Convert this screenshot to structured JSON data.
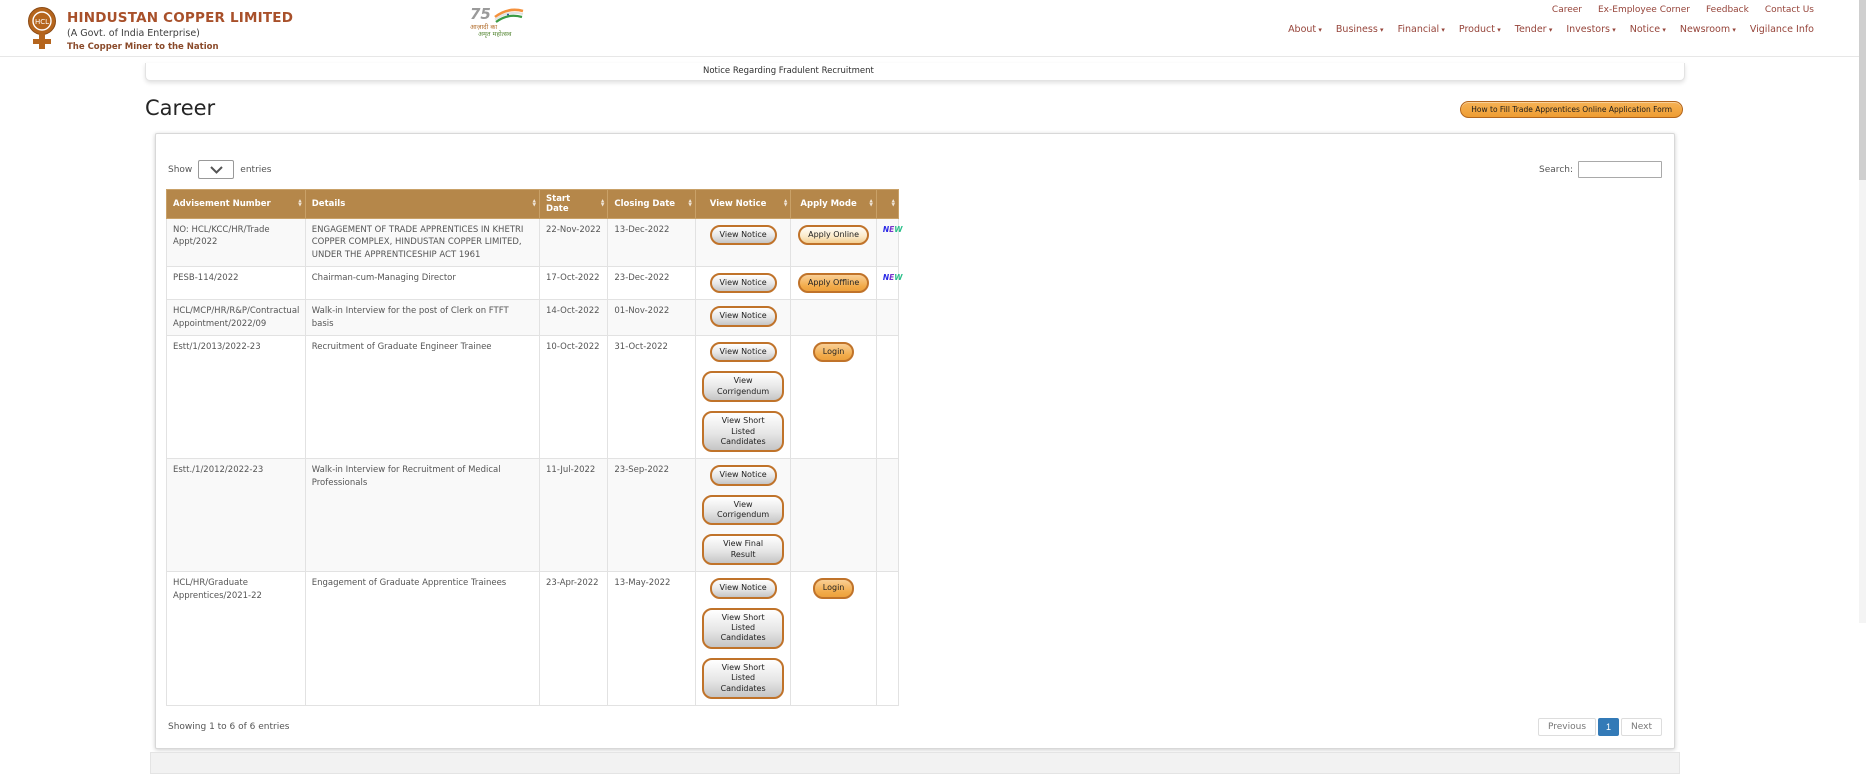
{
  "header": {
    "brand": {
      "name": "HINDUSTAN COPPER LIMITED",
      "subtitle": "(A Govt. of India Enterprise)",
      "tagline": "The Copper Miner to the Nation"
    },
    "center_logo": {
      "number": "75",
      "line1": "आज़ादी का",
      "line2": "अमृत महोत्सव"
    },
    "top_links": [
      "Career",
      "Ex-Employee Corner",
      "Feedback",
      "Contact Us"
    ],
    "nav_items": [
      {
        "label": "About",
        "dropdown": true
      },
      {
        "label": "Business",
        "dropdown": true
      },
      {
        "label": "Financial",
        "dropdown": true
      },
      {
        "label": "Product",
        "dropdown": true
      },
      {
        "label": "Tender",
        "dropdown": true
      },
      {
        "label": "Investors",
        "dropdown": true
      },
      {
        "label": "Notice",
        "dropdown": true
      },
      {
        "label": "Newsroom",
        "dropdown": true
      },
      {
        "label": "Vigilance Info",
        "dropdown": false
      }
    ]
  },
  "notice_bar": {
    "text": "Notice Regarding Fradulent Recruitment"
  },
  "page": {
    "title": "Career",
    "help_button": "How to Fill Trade Apprentices Online Application Form"
  },
  "table_controls": {
    "show_label": "Show",
    "entries_label": "entries",
    "search_label": "Search:",
    "search_value": ""
  },
  "table": {
    "columns": [
      {
        "label": "Advisement Number",
        "center": false
      },
      {
        "label": "Details",
        "center": false
      },
      {
        "label": "Start Date",
        "center": false
      },
      {
        "label": "Closing Date",
        "center": false
      },
      {
        "label": "View Notice",
        "center": true
      },
      {
        "label": "Apply Mode",
        "center": true
      },
      {
        "label": "",
        "center": true
      }
    ],
    "new_label": "NEW",
    "rows": [
      {
        "adv": "NO: HCL/KCC/HR/Trade Appt/2022",
        "details": "ENGAGEMENT OF TRADE APPRENTICES IN KHETRI COPPER COMPLEX, HINDUSTAN COPPER LIMITED, UNDER THE APPRENTICESHIP ACT 1961",
        "start": "22-Nov-2022",
        "closing": "13-Dec-2022",
        "notice_buttons": [
          {
            "label": "View Notice",
            "name": "view-notice-button"
          }
        ],
        "apply_buttons": [
          {
            "label": "Apply Online",
            "name": "apply-online-button",
            "style": "btn-orange-light"
          }
        ],
        "is_new": true
      },
      {
        "adv": "PESB-114/2022",
        "details": "Chairman-cum-Managing Director",
        "start": "17-Oct-2022",
        "closing": "23-Dec-2022",
        "notice_buttons": [
          {
            "label": "View Notice",
            "name": "view-notice-button"
          }
        ],
        "apply_buttons": [
          {
            "label": "Apply Offline",
            "name": "apply-offline-button",
            "style": "btn-orange"
          }
        ],
        "is_new": true
      },
      {
        "adv": "HCL/MCP/HR/R&P/Contractual Appointment/2022/09",
        "details": "Walk-in Interview for the post of Clerk on FTFT basis",
        "start": "14-Oct-2022",
        "closing": "01-Nov-2022",
        "notice_buttons": [
          {
            "label": "View Notice",
            "name": "view-notice-button"
          }
        ],
        "apply_buttons": [],
        "is_new": false
      },
      {
        "adv": "Estt/1/2013/2022-23",
        "details": "Recruitment of Graduate Engineer Trainee",
        "start": "10-Oct-2022",
        "closing": "31-Oct-2022",
        "notice_buttons": [
          {
            "label": "View Notice",
            "name": "view-notice-button"
          },
          {
            "label": "View Corrigendum",
            "name": "view-corrigendum-button"
          },
          {
            "label": "View Short Listed Candidates",
            "name": "view-short-listed-candidates-button"
          }
        ],
        "apply_buttons": [
          {
            "label": "Login",
            "name": "login-button",
            "style": "btn-orange"
          }
        ],
        "is_new": false
      },
      {
        "adv": "Estt./1/2012/2022-23",
        "details": "Walk-in Interview for Recruitment of Medical Professionals",
        "start": "11-Jul-2022",
        "closing": "23-Sep-2022",
        "notice_buttons": [
          {
            "label": "View Notice",
            "name": "view-notice-button"
          },
          {
            "label": "View Corrigendum",
            "name": "view-corrigendum-button"
          },
          {
            "label": "View Final Result",
            "name": "view-final-result-button"
          }
        ],
        "apply_buttons": [],
        "is_new": false
      },
      {
        "adv": "HCL/HR/Graduate Apprentices/2021-22",
        "details": "Engagement of Graduate Apprentice Trainees",
        "start": "23-Apr-2022",
        "closing": "13-May-2022",
        "notice_buttons": [
          {
            "label": "View Notice",
            "name": "view-notice-button"
          },
          {
            "label": "View Short Listed Candidates",
            "name": "view-short-listed-candidates-button"
          },
          {
            "label": "View Short Listed Candidates",
            "name": "view-short-listed-candidates-button"
          }
        ],
        "apply_buttons": [
          {
            "label": "Login",
            "name": "login-button",
            "style": "btn-orange"
          }
        ],
        "is_new": false
      }
    ]
  },
  "table_footer": {
    "showing": "Showing 1 to 6 of 6 entries",
    "previous": "Previous",
    "page": "1",
    "next": "Next"
  },
  "colors": {
    "brand_copper": "#a8502a",
    "nav_maroon": "#96443a",
    "table_header_bg": "#b5874a",
    "button_border_orange": "#c0732a",
    "pagination_active": "#337ab7",
    "new_icon_colors": [
      "#2a2ae6",
      "#7733cc",
      "#2bbf8a"
    ]
  }
}
